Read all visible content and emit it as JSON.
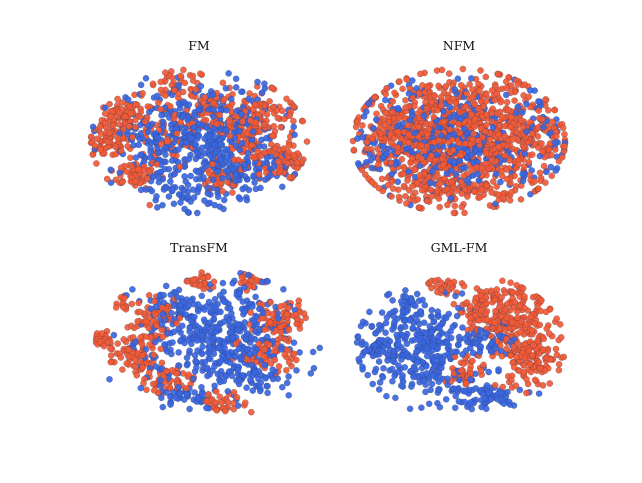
{
  "figure": {
    "colors": {
      "group_a": "#f25a36",
      "group_b": "#3a66e0",
      "edge": "#2a3050"
    }
  },
  "chart_data": [
    {
      "type": "scatter",
      "title": "FM",
      "xlabel": "",
      "ylabel": "",
      "axes_visible": false,
      "grid": false,
      "description_of_points": "t-SNE embedding, ~1400 points, two groups (orange and blue); orange forms clusters around the left and right edges, blue concentrated in the center",
      "x_range": [
        -1,
        1
      ],
      "y_range": [
        -1,
        1
      ],
      "series": [
        {
          "color": "#f25a36",
          "clusters": [
            [
              -0.72,
              0.3,
              0.09,
              0.14,
              70
            ],
            [
              -0.85,
              -0.05,
              0.1,
              0.1,
              55
            ],
            [
              -0.6,
              -0.45,
              0.12,
              0.1,
              55
            ],
            [
              0.55,
              0.35,
              0.18,
              0.18,
              110
            ],
            [
              0.8,
              -0.3,
              0.12,
              0.12,
              70
            ],
            [
              0.2,
              -0.55,
              0.12,
              0.1,
              45
            ],
            [
              -0.2,
              0.75,
              0.15,
              0.12,
              45
            ],
            [
              0.15,
              0.45,
              0.12,
              0.15,
              50
            ],
            [
              -0.35,
              0.1,
              0.2,
              0.25,
              80
            ],
            [
              0.45,
              -0.1,
              0.15,
              0.2,
              60
            ]
          ]
        },
        {
          "color": "#3a66e0",
          "clusters": [
            [
              0.05,
              0.05,
              0.35,
              0.38,
              420
            ],
            [
              -0.4,
              -0.15,
              0.15,
              0.25,
              70
            ],
            [
              0.4,
              -0.45,
              0.2,
              0.15,
              70
            ],
            [
              -0.1,
              -0.75,
              0.2,
              0.1,
              40
            ]
          ]
        }
      ]
    },
    {
      "type": "scatter",
      "title": "NFM",
      "xlabel": "",
      "ylabel": "",
      "axes_visible": false,
      "grid": false,
      "description_of_points": "t-SNE embedding, orange points spread evenly across the whole elliptical cloud, blue mixed inside",
      "x_range": [
        -1,
        1
      ],
      "y_range": [
        -1,
        1
      ],
      "series": [
        {
          "color": "#f25a36",
          "clusters": [
            [
              0,
              0,
              0.48,
              0.42,
              780
            ],
            [
              -0.6,
              0.1,
              0.18,
              0.25,
              90
            ],
            [
              0.6,
              0.05,
              0.18,
              0.25,
              90
            ],
            [
              0,
              -0.65,
              0.3,
              0.12,
              70
            ],
            [
              0,
              0.65,
              0.3,
              0.12,
              70
            ]
          ]
        },
        {
          "color": "#3a66e0",
          "clusters": [
            [
              0,
              0,
              0.4,
              0.38,
              340
            ],
            [
              -0.75,
              -0.1,
              0.1,
              0.2,
              30
            ],
            [
              0.75,
              0.1,
              0.1,
              0.2,
              30
            ]
          ]
        }
      ]
    },
    {
      "type": "scatter",
      "title": "TransFM",
      "xlabel": "",
      "ylabel": "",
      "axes_visible": false,
      "grid": false,
      "description_of_points": "t-SNE embedding, orange in distinct peripheral clusters, blue dense in the middle",
      "x_range": [
        -1,
        1
      ],
      "y_range": [
        -1,
        1
      ],
      "series": [
        {
          "color": "#f25a36",
          "clusters": [
            [
              -0.95,
              0.05,
              0.05,
              0.05,
              25
            ],
            [
              -0.65,
              -0.15,
              0.12,
              0.14,
              80
            ],
            [
              -0.5,
              0.35,
              0.1,
              0.12,
              60
            ],
            [
              -0.35,
              -0.5,
              0.1,
              0.1,
              50
            ],
            [
              -0.05,
              0.85,
              0.06,
              0.06,
              25
            ],
            [
              0.4,
              0.85,
              0.06,
              0.05,
              20
            ],
            [
              0.65,
              0.35,
              0.12,
              0.12,
              70
            ],
            [
              0.55,
              -0.1,
              0.12,
              0.15,
              60
            ],
            [
              0.15,
              -0.8,
              0.1,
              0.07,
              35
            ],
            [
              -0.75,
              0.55,
              0.05,
              0.05,
              15
            ]
          ]
        },
        {
          "color": "#3a66e0",
          "clusters": [
            [
              0.1,
              0.05,
              0.32,
              0.38,
              430
            ],
            [
              -0.3,
              0.5,
              0.12,
              0.15,
              50
            ],
            [
              -0.2,
              -0.7,
              0.12,
              0.07,
              35
            ],
            [
              0.45,
              -0.5,
              0.12,
              0.12,
              40
            ]
          ]
        }
      ]
    },
    {
      "type": "scatter",
      "title": "GML-FM",
      "xlabel": "",
      "ylabel": "",
      "axes_visible": false,
      "grid": false,
      "description_of_points": "t-SNE embedding, blue on the left half, orange on the right half with clear separation",
      "x_range": [
        -1,
        1
      ],
      "y_range": [
        -1,
        1
      ],
      "series": [
        {
          "color": "#f25a36",
          "clusters": [
            [
              0.55,
              0.3,
              0.18,
              0.22,
              170
            ],
            [
              0.65,
              -0.2,
              0.15,
              0.2,
              120
            ],
            [
              0.2,
              0.4,
              0.12,
              0.12,
              60
            ],
            [
              -0.15,
              0.85,
              0.08,
              0.06,
              25
            ],
            [
              0.05,
              -0.35,
              0.1,
              0.12,
              40
            ],
            [
              0.35,
              0.7,
              0.12,
              0.08,
              40
            ]
          ]
        },
        {
          "color": "#3a66e0",
          "clusters": [
            [
              -0.4,
              0.0,
              0.28,
              0.3,
              340
            ],
            [
              -0.85,
              -0.05,
              0.07,
              0.06,
              30
            ],
            [
              0.15,
              -0.7,
              0.25,
              0.1,
              80
            ],
            [
              0.3,
              0.05,
              0.1,
              0.15,
              40
            ],
            [
              -0.45,
              0.6,
              0.08,
              0.08,
              20
            ]
          ]
        }
      ]
    }
  ]
}
